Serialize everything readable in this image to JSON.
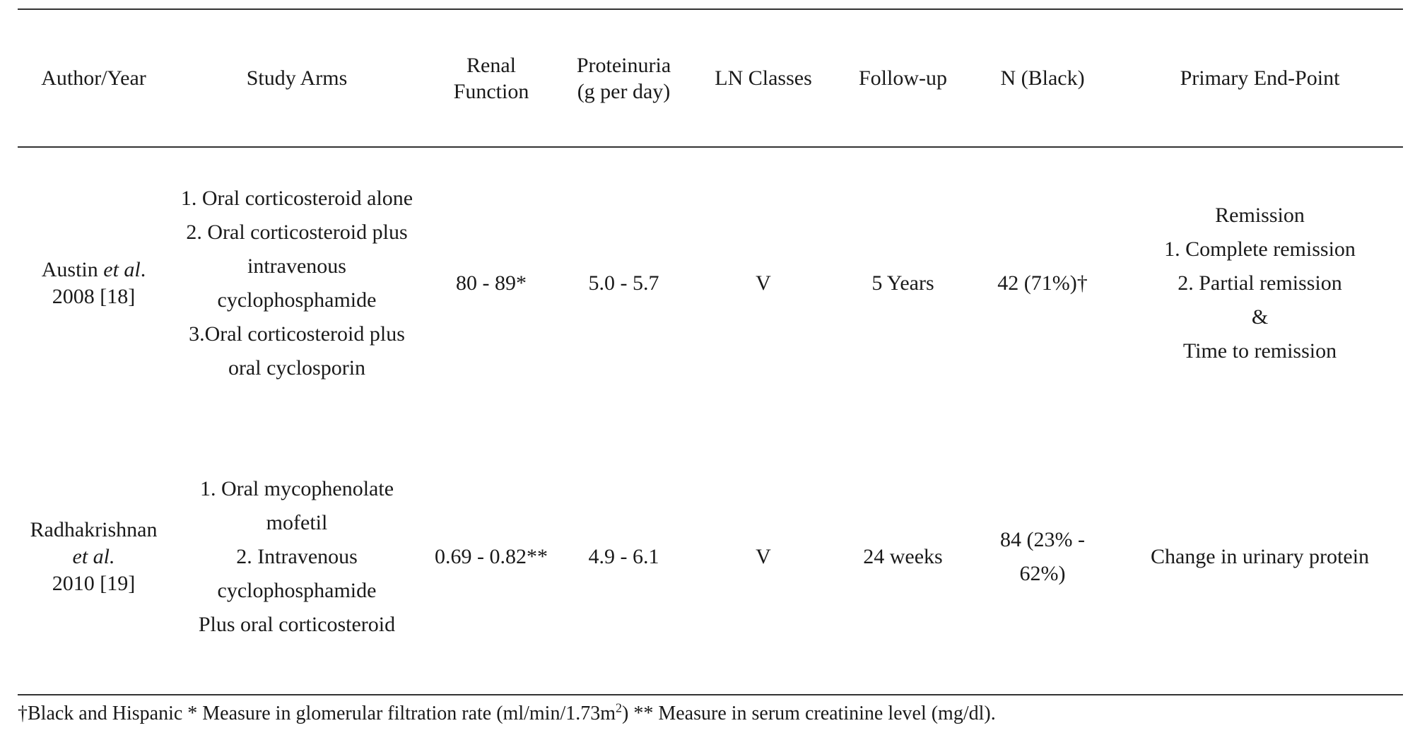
{
  "table": {
    "headers": [
      [
        "Author/Year"
      ],
      [
        "Study Arms"
      ],
      [
        "Renal",
        "Function"
      ],
      [
        "Proteinuria",
        "(g per day)"
      ],
      [
        "LN Classes"
      ],
      [
        "Follow-up"
      ],
      [
        "N (Black)"
      ],
      [
        "Primary End-Point"
      ]
    ],
    "rows": [
      {
        "author_name": "Austin ",
        "author_etal": "et al",
        "author_dot": ".",
        "author_year": "2008 [18]",
        "study_arms": [
          "1. Oral corticosteroid alone",
          "2. Oral corticosteroid plus",
          "intravenous",
          "cyclophosphamide",
          "3.Oral corticosteroid plus",
          "oral cyclosporin"
        ],
        "renal_function": "80 - 89*",
        "proteinuria": "5.0 - 5.7",
        "ln_classes": "V",
        "follow_up": "5 Years",
        "n_black": [
          "42 (71%)†"
        ],
        "primary_end_point": [
          "Remission",
          "1. Complete remission",
          "2. Partial remission",
          "&",
          "Time to remission"
        ]
      },
      {
        "author_name": "Radhakrishnan",
        "author_etal": "et al.",
        "author_dot": "",
        "author_year": "2010 [19]",
        "study_arms": [
          "1. Oral mycophenolate",
          "mofetil",
          "2. Intravenous",
          "cyclophosphamide",
          "Plus oral corticosteroid"
        ],
        "renal_function": "0.69 - 0.82**",
        "proteinuria": "4.9 - 6.1",
        "ln_classes": "V",
        "follow_up": "24 weeks",
        "n_black": [
          "84 (23% -",
          "62%)"
        ],
        "primary_end_point": [
          "Change in urinary protein"
        ]
      }
    ]
  },
  "footnote": {
    "before_sup": "†Black and Hispanic * Measure in glomerular filtration rate (ml/min/1.73m",
    "sup": "2",
    "after_sup": ") ** Measure in serum creatinine level (mg/dl)."
  }
}
